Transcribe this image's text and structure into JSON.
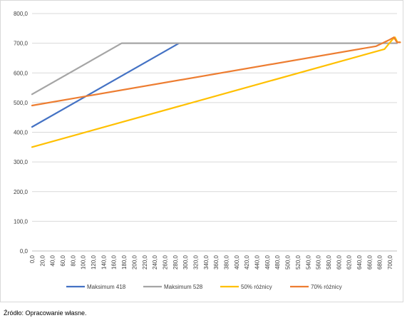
{
  "chart_data": {
    "type": "line",
    "title": "",
    "xlabel": "",
    "ylabel": "",
    "ylim": [
      0,
      800
    ],
    "yticks": [
      0,
      100,
      200,
      300,
      400,
      500,
      600,
      700,
      800
    ],
    "ytick_labels": [
      "0,0",
      "100,0",
      "200,0",
      "300,0",
      "400,0",
      "500,0",
      "600,0",
      "700,0",
      "800,0"
    ],
    "xlim": [
      0,
      700
    ],
    "xtick_labels": [
      "0,0",
      "20,0",
      "40,0",
      "60,0",
      "80,0",
      "100,0",
      "120,0",
      "140,0",
      "160,0",
      "180,0",
      "200,0",
      "220,0",
      "240,0",
      "260,0",
      "280,0",
      "300,0",
      "320,0",
      "340,0",
      "360,0",
      "380,0",
      "400,0",
      "420,0",
      "440,0",
      "460,0",
      "480,0",
      "500,0",
      "520,0",
      "540,0",
      "560,0",
      "580,0",
      "600,0",
      "620,0",
      "640,0",
      "660,0",
      "680,0",
      "700,0"
    ],
    "grid": true,
    "legend_position": "bottom",
    "series": [
      {
        "name": "Maksimum 418",
        "color": "#4472c4",
        "points": [
          [
            0,
            418
          ],
          [
            282,
            700
          ]
        ]
      },
      {
        "name": "Maksimum 528",
        "color": "#a5a5a5",
        "points": [
          [
            0,
            528
          ],
          [
            172,
            700
          ],
          [
            700,
            700
          ]
        ]
      },
      {
        "name": "50% różnicy",
        "color": "#ffc000",
        "points": [
          [
            0,
            350
          ],
          [
            676,
            680
          ],
          [
            690,
            710
          ],
          [
            696,
            720
          ],
          [
            701,
            703
          ],
          [
            706,
            703
          ]
        ]
      },
      {
        "name": "70% różnicy",
        "color": "#ed7d31",
        "points": [
          [
            0,
            490
          ],
          [
            660,
            690
          ],
          [
            686,
            712
          ],
          [
            694,
            720
          ],
          [
            700,
            703
          ],
          [
            706,
            703
          ]
        ]
      }
    ]
  },
  "source_note": "Źródło: Opracowanie własne."
}
